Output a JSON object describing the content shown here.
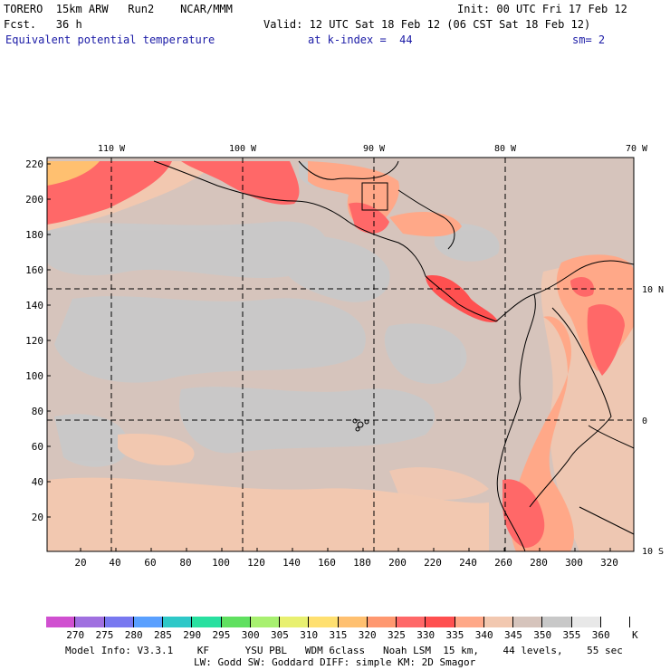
{
  "header": {
    "line1_left": "TORERO  15km ARW   Run2    NCAR/MMM",
    "line1_right": "Init: 00 UTC Fri 17 Feb 12",
    "line2_left": "Fcst.   36 h",
    "line2_right": "Valid: 12 UTC Sat 18 Feb 12 (06 CST Sat 18 Feb 12)",
    "field_name": "Equivalent potential temperature",
    "level": "at k-index =  44",
    "smoothing": "sm= 2"
  },
  "map": {
    "lon_labels": [
      "110 W",
      "100 W",
      "90 W",
      "80 W",
      "70 W"
    ],
    "lat_labels": [
      "10 N",
      "0",
      "10 S"
    ],
    "y_grid_labels": [
      "220",
      "200",
      "180",
      "160",
      "140",
      "120",
      "100",
      "80",
      "60",
      "40",
      "20"
    ],
    "x_grid_labels": [
      "20",
      "40",
      "60",
      "80",
      "100",
      "120",
      "140",
      "160",
      "180",
      "200",
      "220",
      "240",
      "260",
      "280",
      "300",
      "320"
    ]
  },
  "colorbar": {
    "unit": "K",
    "levels": [
      "270",
      "275",
      "280",
      "285",
      "290",
      "295",
      "300",
      "305",
      "310",
      "315",
      "320",
      "325",
      "330",
      "335",
      "340",
      "345",
      "350",
      "355",
      "360"
    ],
    "colors": [
      "#d050d0",
      "#a070e0",
      "#7878f0",
      "#5aa0ff",
      "#2ec8c8",
      "#28e0a0",
      "#60e060",
      "#a8f070",
      "#e8f070",
      "#ffe070",
      "#ffc070",
      "#ff9870",
      "#ff6868",
      "#ff5050",
      "#ffa888",
      "#f2c8b0",
      "#d6c4bc",
      "#c8c8c8",
      "#e8e8e8",
      "#ffffff"
    ]
  },
  "footer": {
    "line1": "Model Info: V3.3.1    KF      YSU PBL   WDM 6class   Noah LSM  15 km,    44 levels,    55 sec",
    "line2": "LW: Godd SW: Goddard DIFF: simple KM: 2D Smagor"
  }
}
